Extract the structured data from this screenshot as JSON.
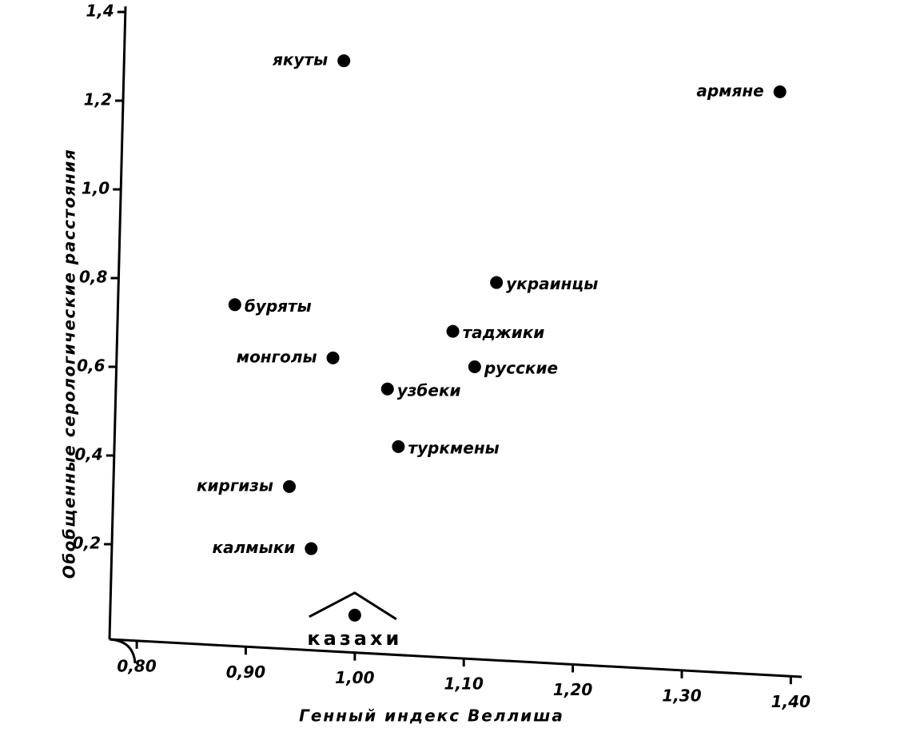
{
  "chart_data": {
    "type": "scatter",
    "xlabel": "Генный индекс Веллиша",
    "ylabel": "Обобщенные серологические расстояния",
    "labels": [
      "якуты",
      "армяне",
      "украинцы",
      "буряты",
      "таджики",
      "монголы",
      "русские",
      "узбеки",
      "туркмены",
      "киргизы",
      "калмыки",
      "казахи"
    ],
    "x": [
      0.99,
      1.39,
      1.13,
      0.89,
      1.09,
      0.98,
      1.11,
      1.03,
      1.04,
      0.94,
      0.96,
      1.0
    ],
    "y": [
      1.29,
      1.22,
      0.79,
      0.74,
      0.68,
      0.62,
      0.6,
      0.55,
      0.42,
      0.33,
      0.19,
      0.04
    ],
    "color": "#000000",
    "xlim": [
      0.775,
      1.41
    ],
    "ylim": [
      0,
      1.4
    ],
    "xticks": [
      {
        "value": 0.8,
        "label": "0,80"
      },
      {
        "value": 0.9,
        "label": "0,90"
      },
      {
        "value": 1.0,
        "label": "1,00"
      },
      {
        "value": 1.1,
        "label": "1,10"
      },
      {
        "value": 1.2,
        "label": "1,20"
      },
      {
        "value": 1.3,
        "label": "1,30"
      },
      {
        "value": 1.4,
        "label": "1,40"
      }
    ],
    "yticks": [
      {
        "value": 0.2,
        "label": "0,2"
      },
      {
        "value": 0.4,
        "label": "0,4"
      },
      {
        "value": 0.6,
        "label": "0,6"
      },
      {
        "value": 0.8,
        "label": "0,8"
      },
      {
        "value": 1.0,
        "label": "1,0"
      },
      {
        "value": 1.2,
        "label": "1,2"
      },
      {
        "value": 1.4,
        "label": "1,4"
      }
    ]
  }
}
